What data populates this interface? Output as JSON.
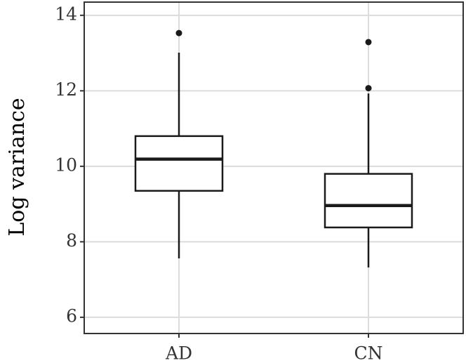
{
  "chart_data": {
    "type": "box",
    "y_label": "Log variance",
    "categories": [
      "AD",
      "CN"
    ],
    "boxes": [
      {
        "min": 7.56,
        "q1": 9.35,
        "median": 10.19,
        "q3": 10.8,
        "max": 13.01,
        "outliers": [
          13.53
        ]
      },
      {
        "min": 7.32,
        "q1": 8.38,
        "median": 8.96,
        "q3": 9.8,
        "max": 11.93,
        "outliers": [
          13.29,
          12.07
        ]
      }
    ],
    "color": "#1a1a1a",
    "fill": "#ffffff",
    "ylim": [
      5.57,
      14.35
    ],
    "yticks": [
      6,
      8,
      10,
      12,
      14
    ],
    "grid": true
  }
}
